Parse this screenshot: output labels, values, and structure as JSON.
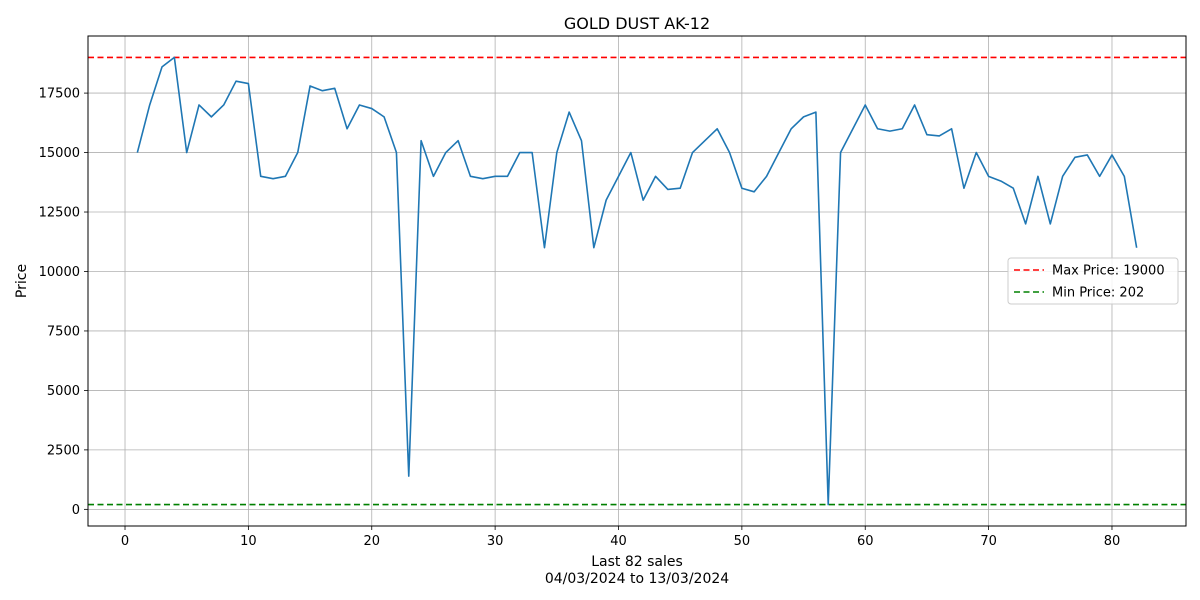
{
  "chart_data": {
    "type": "line",
    "title": "GOLD DUST AK-12",
    "xlabel": "Last 82 sales",
    "xlabel_sub": "04/03/2024 to 13/03/2024",
    "ylabel": "Price",
    "xlim": [
      -3,
      86
    ],
    "ylim": [
      -700,
      19900
    ],
    "xticks": [
      0,
      10,
      20,
      30,
      40,
      50,
      60,
      70,
      80
    ],
    "yticks": [
      0,
      2500,
      5000,
      7500,
      10000,
      12500,
      15000,
      17500
    ],
    "grid": true,
    "legend_position": "center-right",
    "series": [
      {
        "color": "#1f77b4",
        "x": [
          1,
          2,
          3,
          4,
          5,
          6,
          7,
          8,
          9,
          10,
          11,
          12,
          13,
          14,
          15,
          16,
          17,
          18,
          19,
          20,
          21,
          22,
          23,
          24,
          25,
          26,
          27,
          28,
          29,
          30,
          31,
          32,
          33,
          34,
          35,
          36,
          37,
          38,
          39,
          40,
          41,
          42,
          43,
          44,
          45,
          46,
          47,
          48,
          49,
          50,
          51,
          52,
          53,
          54,
          55,
          56,
          57,
          58,
          59,
          60,
          61,
          62,
          63,
          64,
          65,
          66,
          67,
          68,
          69,
          70,
          71,
          72,
          73,
          74,
          75,
          76,
          77,
          78,
          79,
          80,
          81,
          82
        ],
        "y": [
          15000,
          17000,
          18600,
          19000,
          15000,
          17000,
          16500,
          17000,
          18000,
          17900,
          14000,
          13900,
          14000,
          15000,
          17800,
          17600,
          17700,
          16000,
          17000,
          16850,
          16500,
          15000,
          1400,
          15500,
          14000,
          15000,
          15500,
          14000,
          13900,
          14000,
          14000,
          15000,
          15000,
          11000,
          15000,
          16700,
          15500,
          11000,
          13000,
          14000,
          15000,
          13000,
          14000,
          13450,
          13500,
          15000,
          15500,
          16000,
          15000,
          13500,
          13350,
          14000,
          15000,
          16000,
          16500,
          16700,
          202,
          15000,
          16000,
          17000,
          16000,
          15900,
          16000,
          17000,
          15750,
          15700,
          16000,
          13500,
          15000,
          14000,
          13800,
          13500,
          12000,
          14000,
          12000,
          14000,
          14800,
          14900,
          14000,
          14900,
          14000,
          11000
        ]
      }
    ],
    "reference_lines": [
      {
        "label": "Max Price: 19000",
        "value": 19000,
        "color": "#ff0000"
      },
      {
        "label": "Min Price: 202",
        "value": 202,
        "color": "#008000"
      }
    ]
  }
}
